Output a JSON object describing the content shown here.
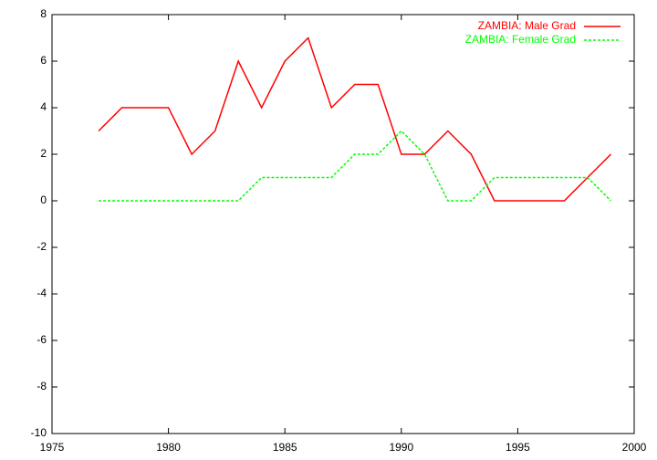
{
  "chart_data": {
    "type": "line",
    "x": [
      1977,
      1978,
      1979,
      1980,
      1981,
      1982,
      1983,
      1984,
      1985,
      1986,
      1987,
      1988,
      1989,
      1990,
      1991,
      1992,
      1993,
      1994,
      1995,
      1996,
      1997,
      1998,
      1999
    ],
    "series": [
      {
        "name": "ZAMBIA: Male Grad",
        "color": "#ff0000",
        "dash": "solid",
        "values": [
          3,
          4,
          4,
          4,
          2,
          3,
          6,
          4,
          6,
          7,
          4,
          5,
          5,
          2,
          2,
          3,
          2,
          0,
          0,
          0,
          0,
          1,
          2
        ]
      },
      {
        "name": "ZAMBIA: Female Grad",
        "color": "#00ff00",
        "dash": "dashed",
        "values": [
          0,
          0,
          0,
          0,
          0,
          0,
          0,
          1,
          1,
          1,
          1,
          2,
          2,
          3,
          2,
          0,
          0,
          1,
          1,
          1,
          1,
          1,
          0
        ]
      }
    ],
    "xlim": [
      1975,
      2000
    ],
    "xticks": [
      1975,
      1980,
      1985,
      1990,
      1995,
      2000
    ],
    "ylim": [
      -10,
      8
    ],
    "yticks": [
      -10,
      -8,
      -6,
      -4,
      -2,
      0,
      2,
      4,
      6,
      8
    ],
    "grid": false,
    "legend": "top-right"
  }
}
